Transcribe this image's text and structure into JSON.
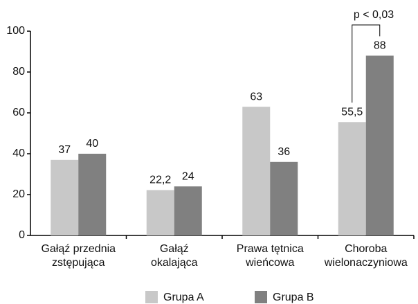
{
  "chart_data": {
    "type": "bar",
    "categories": [
      [
        "Gałąź przednia",
        "zstępująca"
      ],
      [
        "Gałąź",
        "okalająca"
      ],
      [
        "Prawa tętnica",
        "wieńcowa"
      ],
      [
        "Choroba",
        "wielonaczyniowa"
      ]
    ],
    "series": [
      {
        "name": "Grupa A",
        "color": "#c8c8c8",
        "values": [
          37,
          22.2,
          63,
          55.5
        ],
        "value_labels": [
          "37",
          "22,2",
          "63",
          "55,5"
        ]
      },
      {
        "name": "Grupa B",
        "color": "#808080",
        "values": [
          40,
          24,
          36,
          88
        ],
        "value_labels": [
          "40",
          "24",
          "36",
          "88"
        ]
      }
    ],
    "ylim": [
      0,
      100
    ],
    "yticks": [
      0,
      20,
      40,
      60,
      80,
      100
    ],
    "grid": false,
    "annotations": [
      "p < 0,03"
    ],
    "legend": "bottom"
  }
}
